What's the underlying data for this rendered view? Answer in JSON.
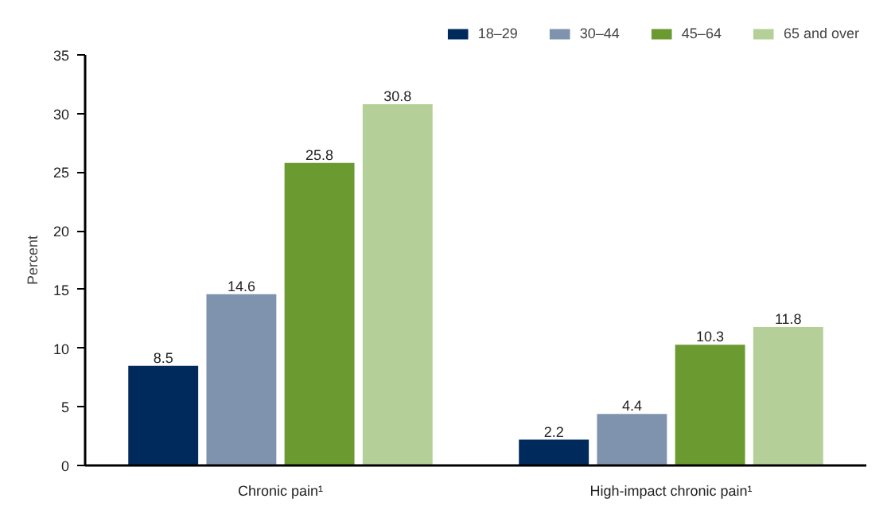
{
  "chart_data": {
    "type": "bar",
    "ylabel": "Percent",
    "categories": [
      "Chronic pain¹",
      "High-impact chronic pain¹"
    ],
    "series": [
      {
        "name": "18–29",
        "color": "#002a5c",
        "values": [
          8.5,
          2.2
        ]
      },
      {
        "name": "30–44",
        "color": "#7f93ae",
        "values": [
          14.6,
          4.4
        ]
      },
      {
        "name": "45–64",
        "color": "#6a9a30",
        "values": [
          25.8,
          10.3
        ]
      },
      {
        "name": "65 and over",
        "color": "#b5cf98",
        "values": [
          30.8,
          11.8
        ]
      }
    ],
    "ylim": [
      0,
      35
    ],
    "yticks": [
      0,
      5,
      10,
      15,
      20,
      25,
      30,
      35
    ],
    "grid": false,
    "legend": "top right",
    "data_labels": true
  }
}
